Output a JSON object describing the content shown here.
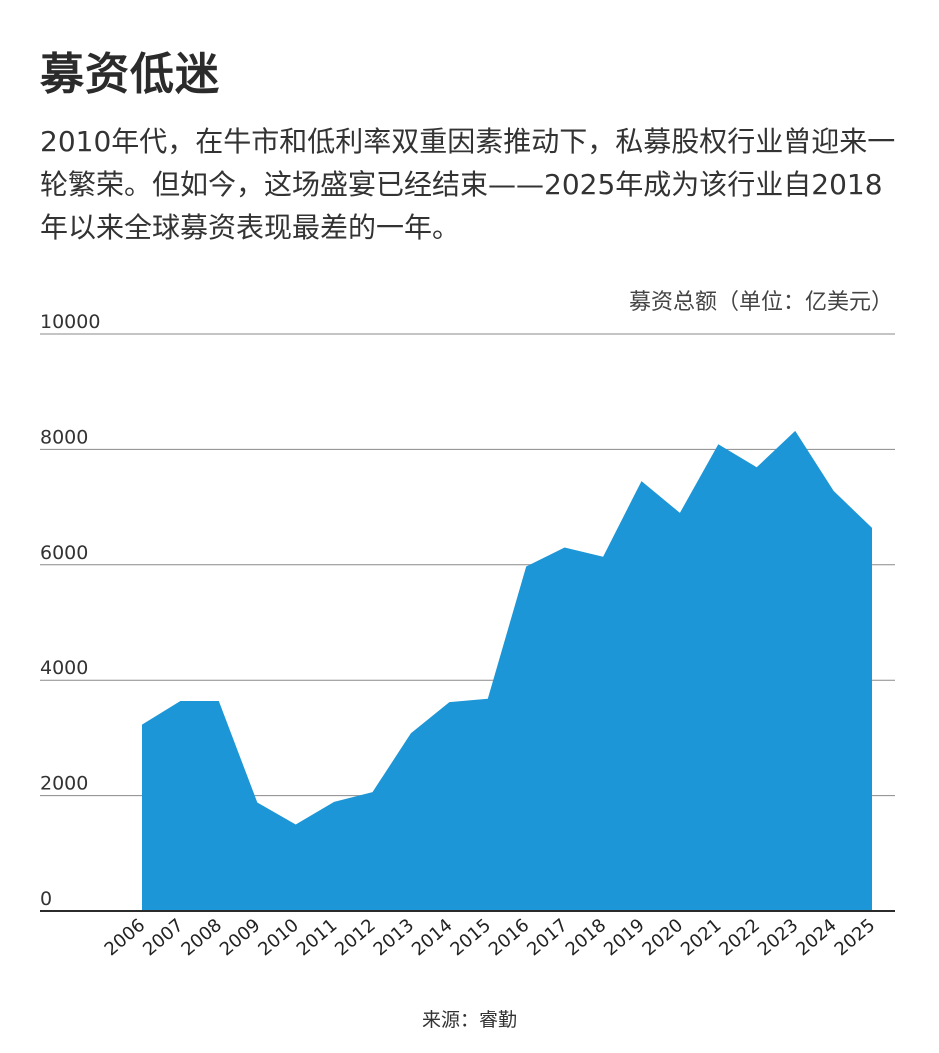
{
  "header": {
    "title": "募资低迷",
    "subtitle": "2010年代，在牛市和低利率双重因素推动下，私募股权行业曾迎来一轮繁荣。但如今，这场盛宴已经结束——2025年成为该行业自2018年以来全球募资表现最差的一年。"
  },
  "chart_data": {
    "type": "area",
    "title": "募资低迷",
    "ylabel": "募资总额（单位：亿美元）",
    "xlabel": "",
    "ylim": [
      0,
      10000
    ],
    "yticks": [
      0,
      2000,
      4000,
      6000,
      8000,
      10000
    ],
    "grid": true,
    "categories": [
      "2006",
      "2007",
      "2008",
      "2009",
      "2010",
      "2011",
      "2012",
      "2013",
      "2014",
      "2015",
      "2016",
      "2017",
      "2018",
      "2019",
      "2020",
      "2021",
      "2022",
      "2023",
      "2024",
      "2025"
    ],
    "series": [
      {
        "values": [
          3230,
          3640,
          3640,
          1880,
          1500,
          1890,
          2060,
          3080,
          3620,
          3680,
          5970,
          6300,
          6140,
          7450,
          6900,
          8090,
          7690,
          8320,
          7280,
          6640
        ]
      }
    ],
    "colors": {
      "area": "#1c96d6",
      "grid": "#8a8a8a",
      "axis": "#2b2b2b"
    }
  },
  "footer": {
    "source": "来源：睿勤"
  }
}
